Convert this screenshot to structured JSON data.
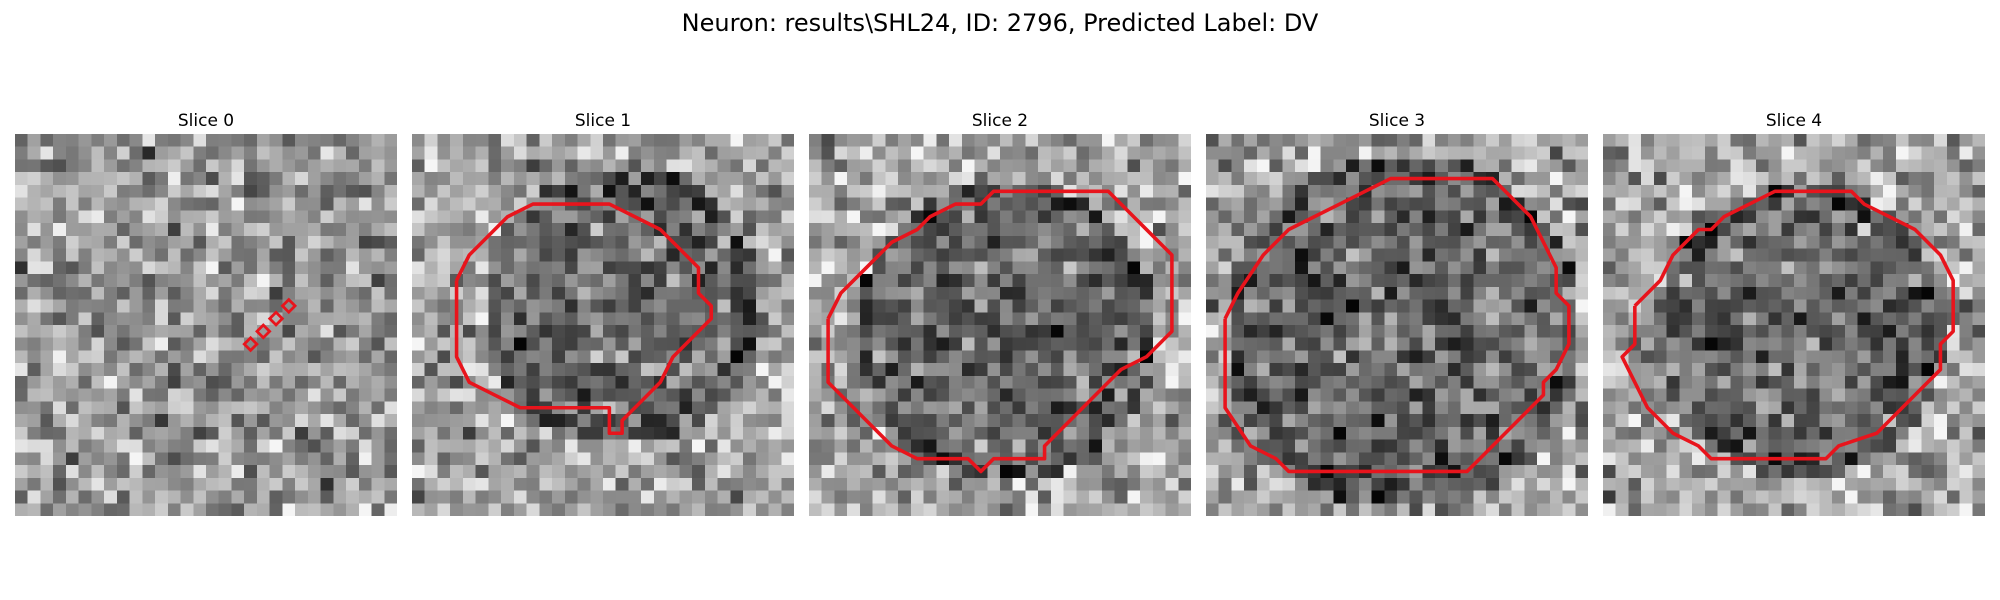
{
  "figure": {
    "title": "Neuron: results\\SHL24, ID: 2796, Predicted Label: DV"
  },
  "slices": [
    {
      "title": "Slice 0",
      "seed": 11,
      "dark_disk": false,
      "contour": [
        [
          18.5,
          16.5
        ],
        [
          19.5,
          15.5
        ],
        [
          20.5,
          14.5
        ],
        [
          21.5,
          13.5
        ]
      ],
      "contour_type": "markers"
    },
    {
      "title": "Slice 1",
      "seed": 23,
      "dark_disk": true,
      "disk": [
        16,
        13,
        9.5
      ],
      "contour_type": "polygon",
      "contour": [
        [
          3.5,
          11.5
        ],
        [
          4.5,
          9.5
        ],
        [
          6.5,
          7.5
        ],
        [
          7.5,
          6.5
        ],
        [
          9.5,
          5.5
        ],
        [
          10.5,
          5.5
        ],
        [
          15.5,
          5.5
        ],
        [
          17.5,
          6.5
        ],
        [
          19.5,
          7.5
        ],
        [
          20.5,
          8.5
        ],
        [
          21.5,
          9.5
        ],
        [
          22.5,
          10.5
        ],
        [
          22.5,
          12.5
        ],
        [
          23.5,
          13.5
        ],
        [
          23.5,
          14.5
        ],
        [
          22.5,
          15.5
        ],
        [
          21.5,
          16.5
        ],
        [
          20.5,
          17.5
        ],
        [
          19.5,
          19.5
        ],
        [
          18.5,
          20.5
        ],
        [
          17.5,
          21.5
        ],
        [
          16.5,
          22.5
        ],
        [
          16.5,
          23.5
        ],
        [
          15.5,
          23.5
        ],
        [
          15.5,
          21.5
        ],
        [
          14.5,
          21.5
        ],
        [
          8.5,
          21.5
        ],
        [
          6.5,
          20.5
        ],
        [
          4.5,
          19.5
        ],
        [
          3.5,
          17.5
        ],
        [
          3.5,
          11.5
        ]
      ]
    },
    {
      "title": "Slice 2",
      "seed": 37,
      "dark_disk": true,
      "disk": [
        15,
        15,
        10.5
      ],
      "contour_type": "polygon",
      "contour": [
        [
          1.5,
          14.5
        ],
        [
          2.5,
          12.5
        ],
        [
          3.5,
          11.5
        ],
        [
          5.5,
          9.5
        ],
        [
          6.5,
          8.5
        ],
        [
          8.5,
          7.5
        ],
        [
          9.5,
          6.5
        ],
        [
          11.5,
          5.5
        ],
        [
          13.5,
          5.5
        ],
        [
          14.5,
          4.5
        ],
        [
          23.5,
          4.5
        ],
        [
          24.5,
          5.5
        ],
        [
          25.5,
          6.5
        ],
        [
          27.5,
          8.5
        ],
        [
          28.5,
          9.5
        ],
        [
          28.5,
          15.5
        ],
        [
          27.5,
          16.5
        ],
        [
          26.5,
          17.5
        ],
        [
          24.5,
          18.5
        ],
        [
          23.5,
          19.5
        ],
        [
          22.5,
          20.5
        ],
        [
          20.5,
          22.5
        ],
        [
          18.5,
          24.5
        ],
        [
          18.5,
          25.5
        ],
        [
          14.5,
          25.5
        ],
        [
          13.5,
          26.5
        ],
        [
          12.5,
          25.5
        ],
        [
          8.5,
          25.5
        ],
        [
          6.5,
          24.5
        ],
        [
          4.5,
          22.5
        ],
        [
          3.5,
          21.5
        ],
        [
          1.5,
          19.5
        ],
        [
          1.5,
          14.5
        ]
      ]
    },
    {
      "title": "Slice 3",
      "seed": 53,
      "dark_disk": true,
      "disk": [
        15,
        15,
        12.5
      ],
      "contour_type": "polygon",
      "contour": [
        [
          1.5,
          14.5
        ],
        [
          2.5,
          12.5
        ],
        [
          4.5,
          9.5
        ],
        [
          6.5,
          7.5
        ],
        [
          8.5,
          6.5
        ],
        [
          10.5,
          5.5
        ],
        [
          12.5,
          4.5
        ],
        [
          14.5,
          3.5
        ],
        [
          22.5,
          3.5
        ],
        [
          23.5,
          4.5
        ],
        [
          25.5,
          6.5
        ],
        [
          26.5,
          8.5
        ],
        [
          27.5,
          10.5
        ],
        [
          27.5,
          12.5
        ],
        [
          28.5,
          13.5
        ],
        [
          28.5,
          16.5
        ],
        [
          27.5,
          18.5
        ],
        [
          26.5,
          19.5
        ],
        [
          26.5,
          20.5
        ],
        [
          24.5,
          22.5
        ],
        [
          22.5,
          24.5
        ],
        [
          21.5,
          25.5
        ],
        [
          20.5,
          26.5
        ],
        [
          6.5,
          26.5
        ],
        [
          5.5,
          25.5
        ],
        [
          3.5,
          24.5
        ],
        [
          1.5,
          21.5
        ],
        [
          1.5,
          14.5
        ]
      ]
    },
    {
      "title": "Slice 4",
      "seed": 71,
      "dark_disk": true,
      "disk": [
        15,
        15,
        10
      ],
      "contour_type": "polygon",
      "contour": [
        [
          2.5,
          13.5
        ],
        [
          4.5,
          11.5
        ],
        [
          5.5,
          9.5
        ],
        [
          6.5,
          8.5
        ],
        [
          7.5,
          7.5
        ],
        [
          8.5,
          7.5
        ],
        [
          9.5,
          6.5
        ],
        [
          11.5,
          5.5
        ],
        [
          13.5,
          4.5
        ],
        [
          19.5,
          4.5
        ],
        [
          20.5,
          5.5
        ],
        [
          22.5,
          6.5
        ],
        [
          24.5,
          7.5
        ],
        [
          26.5,
          9.5
        ],
        [
          27.5,
          11.5
        ],
        [
          27.5,
          15.5
        ],
        [
          26.5,
          16.5
        ],
        [
          26.5,
          18.5
        ],
        [
          25.5,
          19.5
        ],
        [
          24.5,
          20.5
        ],
        [
          23.5,
          21.5
        ],
        [
          22.5,
          22.5
        ],
        [
          21.5,
          23.5
        ],
        [
          18.5,
          24.5
        ],
        [
          17.5,
          25.5
        ],
        [
          8.5,
          25.5
        ],
        [
          7.5,
          24.5
        ],
        [
          5.5,
          23.5
        ],
        [
          3.5,
          21.5
        ],
        [
          2.5,
          19.5
        ],
        [
          1.5,
          17.5
        ],
        [
          2.5,
          16.5
        ],
        [
          2.5,
          13.5
        ]
      ]
    }
  ],
  "colors": {
    "contour": "#e8141c"
  }
}
